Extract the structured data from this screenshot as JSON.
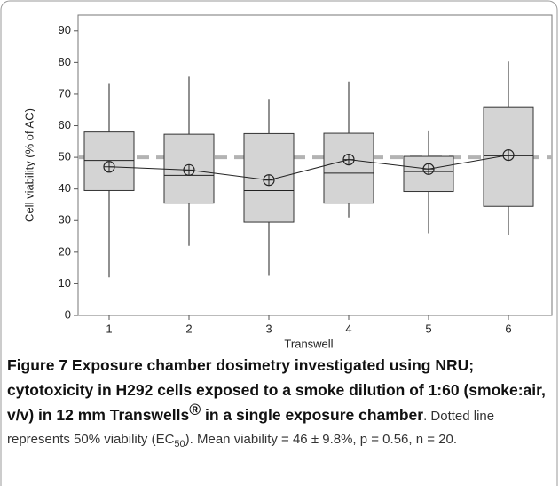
{
  "chart_data": {
    "type": "box",
    "x_label": "Transwell",
    "y_label": "Cell viability (% of AC)",
    "categories": [
      "1",
      "2",
      "3",
      "4",
      "5",
      "6"
    ],
    "low": [
      12,
      22,
      12.5,
      31,
      26,
      25.5
    ],
    "q1": [
      39.5,
      35.5,
      29.5,
      35.5,
      39.2,
      34.5
    ],
    "median": [
      49,
      44.3,
      39.5,
      45,
      45.5,
      50.5
    ],
    "q3": [
      58,
      57.3,
      57.5,
      57.6,
      50.3,
      66
    ],
    "high": [
      73.5,
      75.5,
      68.5,
      74,
      58.5,
      80.3
    ],
    "mean": [
      47,
      46,
      42.8,
      49.3,
      46.3,
      50.7
    ],
    "reference_line": 50,
    "reference_color": "#b3b3b3",
    "box_color": "#d4d4d4",
    "ylim": [
      0,
      95
    ],
    "yticks": [
      0,
      10,
      20,
      30,
      40,
      50,
      60,
      70,
      80,
      90
    ]
  },
  "caption": [
    {
      "style": "bold",
      "text": "Figure 7 Exposure chamber dosimetry investigated using NRU; cytotoxicity in H292 cells exposed to a smoke dilution of 1:60 (smoke:air, v/v) in 12 mm Transwells"
    },
    {
      "style": "bold-sup",
      "text": "®"
    },
    {
      "style": "bold",
      "text": " in a single exposure chamber"
    },
    {
      "style": "normal",
      "text": ". Dotted line represents 50% viability (EC"
    },
    {
      "style": "sub",
      "text": "50"
    },
    {
      "style": "normal",
      "text": "). Mean viability = 46 ± 9.8%, p = 0.56, n = 20."
    }
  ]
}
